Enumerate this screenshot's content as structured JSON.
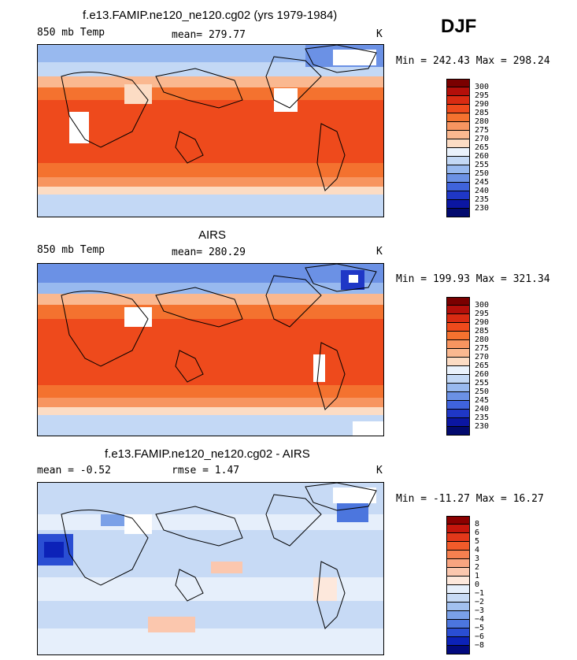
{
  "season": "DJF",
  "panels": [
    {
      "title": "f.e13.FAMIP.ne120_ne120.cg02 (yrs 1979-1984)",
      "left_label": "850 mb Temp",
      "center_label": "mean= 279.77",
      "units": "K",
      "minmax": "Min = 242.43 Max = 298.24",
      "colorbar": {
        "labels": [
          "300",
          "295",
          "290",
          "285",
          "280",
          "275",
          "270",
          "265",
          "260",
          "255",
          "250",
          "245",
          "240",
          "235",
          "230"
        ],
        "colors": [
          "#7a0000",
          "#b40f0a",
          "#d92b12",
          "#ee4a1c",
          "#f4722f",
          "#f79560",
          "#fab890",
          "#fcdcc4",
          "#eaf2fc",
          "#c3d8f5",
          "#98b9ef",
          "#6b91e5",
          "#3f63dc",
          "#1f37c6",
          "#0b16a2",
          "#020a6e"
        ]
      }
    },
    {
      "title": "AIRS",
      "left_label": "850 mb Temp",
      "center_label": "mean= 280.29",
      "units": "K",
      "minmax": "Min = 199.93 Max = 321.34",
      "colorbar": {
        "labels": [
          "300",
          "295",
          "290",
          "285",
          "280",
          "275",
          "270",
          "265",
          "260",
          "255",
          "250",
          "245",
          "240",
          "235",
          "230"
        ],
        "colors": [
          "#7a0000",
          "#b40f0a",
          "#d92b12",
          "#ee4a1c",
          "#f4722f",
          "#f79560",
          "#fab890",
          "#fcdcc4",
          "#eaf2fc",
          "#c3d8f5",
          "#98b9ef",
          "#6b91e5",
          "#3f63dc",
          "#1f37c6",
          "#0b16a2",
          "#020a6e"
        ]
      }
    },
    {
      "title": "f.e13.FAMIP.ne120_ne120.cg02 - AIRS",
      "left_label": "mean =   -0.52",
      "center_label": "rmse =    1.47",
      "units": "K",
      "minmax": "Min = -11.27 Max =  16.27",
      "colorbar": {
        "labels": [
          "8",
          "6",
          "5",
          "4",
          "3",
          "2",
          "1",
          "0",
          "−1",
          "−2",
          "−3",
          "−4",
          "−5",
          "−6",
          "−8"
        ],
        "colors": [
          "#8b0000",
          "#c5160c",
          "#e2381a",
          "#f15b2a",
          "#f58050",
          "#f8a480",
          "#fbc7ae",
          "#fde8dc",
          "#e6effb",
          "#c7daf5",
          "#a2c0ef",
          "#7aa0e7",
          "#4c76de",
          "#2a4ed3",
          "#0c22b8",
          "#020a7e"
        ]
      }
    }
  ]
}
